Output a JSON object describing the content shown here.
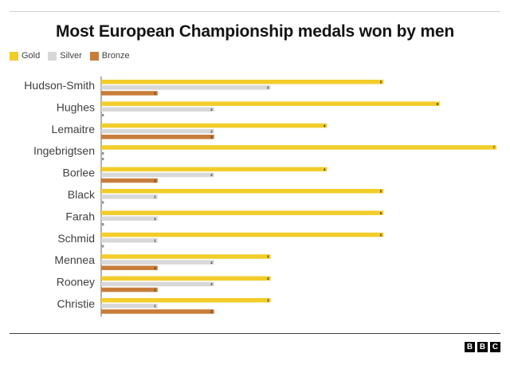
{
  "chart_data": {
    "type": "bar",
    "orientation": "horizontal",
    "title": "Most European Championship medals won by men",
    "categories": [
      "Hudson-Smith",
      "Hughes",
      "Lemaitre",
      "Ingebrigtsen",
      "Borlee",
      "Black",
      "Farah",
      "Schmid",
      "Mennea",
      "Rooney",
      "Christie"
    ],
    "series": [
      {
        "name": "Gold",
        "color": "#f2cd2a",
        "values": [
          5,
          6,
          4,
          7,
          4,
          5,
          5,
          5,
          3,
          3,
          3
        ]
      },
      {
        "name": "Silver",
        "color": "#d8d8d8",
        "values": [
          3,
          2,
          2,
          0,
          2,
          1,
          1,
          1,
          2,
          2,
          1
        ]
      },
      {
        "name": "Bronze",
        "color": "#c87d3a",
        "values": [
          1,
          0,
          2,
          0,
          1,
          0,
          0,
          0,
          1,
          1,
          2
        ]
      }
    ],
    "xlim": [
      0,
      7
    ],
    "grid": false,
    "legend_position": "top-left"
  },
  "branding": {
    "letters": [
      "B",
      "B",
      "C"
    ]
  }
}
